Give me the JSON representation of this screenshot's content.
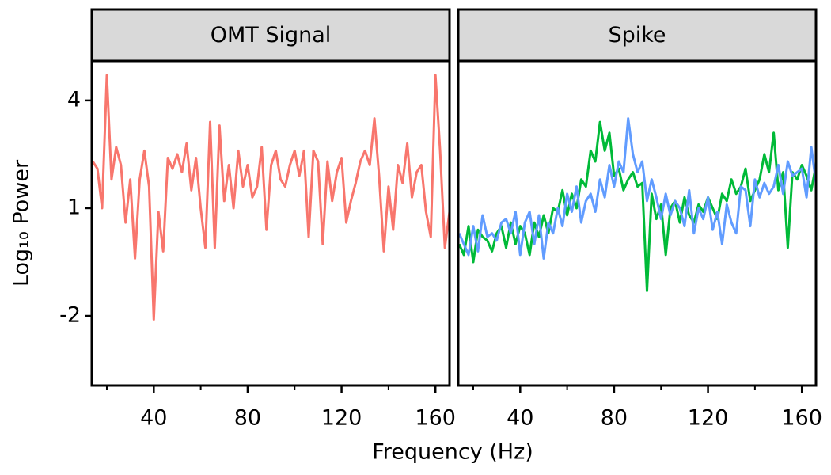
{
  "chart_data": [
    {
      "type": "line",
      "title": "OMT Signal",
      "xlabel": "Frequency (Hz)",
      "ylabel": "Log₁₀ Power",
      "x": [
        14,
        16,
        18,
        20,
        22,
        24,
        26,
        28,
        30,
        32,
        34,
        36,
        38,
        40,
        42,
        44,
        46,
        48,
        50,
        52,
        54,
        56,
        58,
        60,
        62,
        64,
        66,
        68,
        70,
        72,
        74,
        76,
        78,
        80,
        82,
        84,
        86,
        88,
        90,
        92,
        94,
        96,
        98,
        100,
        102,
        104,
        106,
        108,
        110,
        112,
        114,
        116,
        118,
        120,
        122,
        124,
        126,
        128,
        130,
        132,
        134,
        136,
        138,
        140,
        142,
        144,
        146,
        148,
        150,
        152,
        154,
        156,
        158,
        160,
        162,
        164,
        166
      ],
      "series": [
        {
          "color": "#f8766d",
          "values": [
            2.3,
            2.1,
            1.0,
            4.7,
            1.8,
            2.7,
            2.2,
            0.6,
            1.8,
            -0.4,
            1.8,
            2.6,
            1.6,
            -2.1,
            0.9,
            -0.2,
            2.4,
            2.1,
            2.5,
            2.0,
            2.8,
            1.5,
            2.4,
            1.0,
            -0.1,
            3.4,
            -0.1,
            3.3,
            1.2,
            2.2,
            1.0,
            2.6,
            1.6,
            2.2,
            1.3,
            1.6,
            2.7,
            0.4,
            2.2,
            2.6,
            1.8,
            1.6,
            2.2,
            2.6,
            1.9,
            2.6,
            0.2,
            2.6,
            2.3,
            0.0,
            2.3,
            1.2,
            2.0,
            2.4,
            0.6,
            1.2,
            1.7,
            2.3,
            2.6,
            2.2,
            3.5,
            1.9,
            -0.2,
            1.6,
            0.4,
            2.2,
            1.7,
            2.8,
            1.3,
            2.0,
            2.2,
            0.9,
            0.2,
            4.7,
            2.6,
            -0.1,
            0.9
          ]
        }
      ],
      "xlim": [
        13.6,
        166
      ],
      "ylim": [
        -3.94,
        5.1
      ],
      "xticks": [
        40,
        80,
        120,
        160
      ],
      "xminorticks": [
        20,
        60,
        100,
        140
      ],
      "yticks": [
        -2,
        1,
        4
      ]
    },
    {
      "type": "line",
      "title": "Spike",
      "x": [
        14,
        16,
        18,
        20,
        22,
        24,
        26,
        28,
        30,
        32,
        34,
        36,
        38,
        40,
        42,
        44,
        46,
        48,
        50,
        52,
        54,
        56,
        58,
        60,
        62,
        64,
        66,
        68,
        70,
        72,
        74,
        76,
        78,
        80,
        82,
        84,
        86,
        88,
        90,
        92,
        94,
        96,
        98,
        100,
        102,
        104,
        106,
        108,
        110,
        112,
        114,
        116,
        118,
        120,
        122,
        124,
        126,
        128,
        130,
        132,
        134,
        136,
        138,
        140,
        142,
        144,
        146,
        148,
        150,
        152,
        154,
        156,
        158,
        160,
        162,
        164,
        166
      ],
      "series": [
        {
          "color": "#00ba38",
          "values": [
            0.0,
            -0.3,
            0.5,
            -0.5,
            0.4,
            0.2,
            0.1,
            -0.2,
            0.3,
            0.5,
            -0.1,
            0.6,
            0.0,
            0.5,
            0.3,
            -0.3,
            0.6,
            0.2,
            0.8,
            0.3,
            1.0,
            0.9,
            1.5,
            0.8,
            1.4,
            1.0,
            1.8,
            1.6,
            2.6,
            2.3,
            3.4,
            2.6,
            3.1,
            1.9,
            2.1,
            1.5,
            1.8,
            2.0,
            1.6,
            1.7,
            -1.3,
            1.4,
            0.7,
            1.1,
            -0.3,
            1.0,
            1.2,
            0.6,
            1.3,
            0.8,
            0.6,
            1.1,
            0.9,
            1.3,
            1.0,
            0.7,
            1.4,
            1.2,
            1.8,
            1.4,
            1.6,
            2.1,
            1.2,
            1.5,
            1.8,
            2.5,
            2.0,
            3.1,
            1.5,
            2.0,
            -0.1,
            2.0,
            1.8,
            2.2,
            1.9,
            1.5,
            2.2
          ]
        },
        {
          "color": "#619cff",
          "values": [
            0.3,
            0.0,
            -0.3,
            0.5,
            -0.2,
            0.8,
            0.2,
            0.3,
            0.1,
            0.6,
            0.7,
            0.3,
            0.9,
            -0.3,
            0.6,
            0.9,
            0.0,
            0.8,
            -0.4,
            0.6,
            0.3,
            1.0,
            0.5,
            1.4,
            0.9,
            1.6,
            0.6,
            1.2,
            1.4,
            0.9,
            1.8,
            1.3,
            2.2,
            1.6,
            2.3,
            2.0,
            3.5,
            2.5,
            2.0,
            2.3,
            1.2,
            1.8,
            1.3,
            0.7,
            1.4,
            0.8,
            1.2,
            1.0,
            0.5,
            1.5,
            0.3,
            1.0,
            0.7,
            1.3,
            0.4,
            0.9,
            0.0,
            1.1,
            0.6,
            0.3,
            1.6,
            1.5,
            0.5,
            1.8,
            1.3,
            1.7,
            1.4,
            1.6,
            2.2,
            1.4,
            2.3,
            1.9,
            2.0,
            2.1,
            1.3,
            2.7,
            1.7
          ]
        }
      ],
      "xlim": [
        13.6,
        166
      ],
      "ylim": [
        -3.94,
        5.1
      ],
      "xticks": [
        40,
        80,
        120,
        160
      ],
      "xminorticks": [
        20,
        60,
        100,
        140
      ]
    }
  ]
}
